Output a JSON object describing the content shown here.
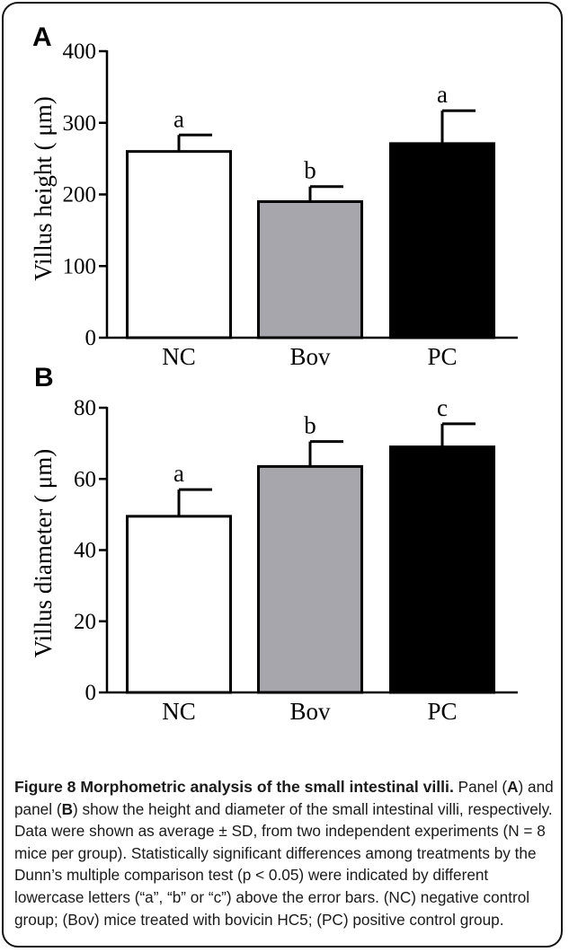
{
  "chart_data": [
    {
      "type": "bar",
      "panel_label": "A",
      "categories": [
        "NC",
        "Bov",
        "PC"
      ],
      "values": [
        260,
        190,
        271
      ],
      "errors": [
        23,
        21,
        46
      ],
      "significance": [
        "a",
        "b",
        "a"
      ],
      "fill_colors": [
        "#ffffff",
        "#a6a6ac",
        "#000000"
      ],
      "ylabel": "Villus height ( μm)",
      "yticks": [
        "0",
        "100",
        "200",
        "300",
        "400"
      ],
      "ylim": [
        0,
        400
      ]
    },
    {
      "type": "bar",
      "panel_label": "B",
      "categories": [
        "NC",
        "Bov",
        "PC"
      ],
      "values": [
        49.5,
        63.5,
        69
      ],
      "errors": [
        7.5,
        7,
        6.5
      ],
      "significance": [
        "a",
        "b",
        "c"
      ],
      "fill_colors": [
        "#ffffff",
        "#a6a6ac",
        "#000000"
      ],
      "ylabel": "Villus diameter ( μm)",
      "yticks": [
        "0",
        "20",
        "40",
        "60",
        "80"
      ],
      "ylim": [
        0,
        80
      ]
    }
  ],
  "caption": {
    "title": "Figure 8 Morphometric analysis of the small intestinal villi.",
    "body_parts": [
      "Panel (",
      "A",
      ") and panel (",
      "B",
      ") show the height and diameter of the small intestinal villi, respectively. Data were shown as average ± SD, from two independent experiments (N = 8 mice per group). Statistically significant differences among treatments by the Dunn’s multiple comparison test (p < 0.05) were indicated by different lowercase letters (“a”, “b” or “c”) above the error bars. (NC) negative control group; (Bov) mice treated with bovicin HC5; (PC) positive control group."
    ]
  }
}
